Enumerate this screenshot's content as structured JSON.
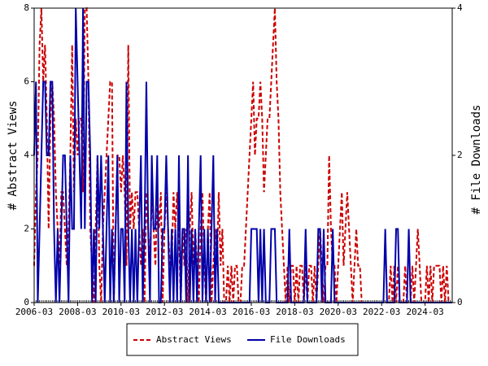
{
  "chart_data": {
    "type": "line",
    "ylabel": "# Abstract Views",
    "y2label": "# File Downloads",
    "x": [
      "2006-03",
      "2006-04",
      "2006-05",
      "2006-06",
      "2006-07",
      "2006-08",
      "2006-09",
      "2006-10",
      "2006-11",
      "2006-12",
      "2007-01",
      "2007-02",
      "2007-03",
      "2007-04",
      "2007-05",
      "2007-06",
      "2007-07",
      "2007-08",
      "2007-09",
      "2007-10",
      "2007-11",
      "2007-12",
      "2008-01",
      "2008-02",
      "2008-03",
      "2008-04",
      "2008-05",
      "2008-06",
      "2008-07",
      "2008-08",
      "2008-09",
      "2008-10",
      "2008-11",
      "2008-12",
      "2009-01",
      "2009-02",
      "2009-03",
      "2009-04",
      "2009-05",
      "2009-06",
      "2009-07",
      "2009-08",
      "2009-09",
      "2009-10",
      "2009-11",
      "2009-12",
      "2010-01",
      "2010-02",
      "2010-03",
      "2010-04",
      "2010-05",
      "2010-06",
      "2010-07",
      "2010-08",
      "2010-09",
      "2010-10",
      "2010-11",
      "2010-12",
      "2011-01",
      "2011-02",
      "2011-03",
      "2011-04",
      "2011-05",
      "2011-06",
      "2011-07",
      "2011-08",
      "2011-09",
      "2011-10",
      "2011-11",
      "2011-12",
      "2012-01",
      "2012-02",
      "2012-03",
      "2012-04",
      "2012-05",
      "2012-06",
      "2012-07",
      "2012-08",
      "2012-09",
      "2012-10",
      "2012-11",
      "2012-12",
      "2013-01",
      "2013-02",
      "2013-03",
      "2013-04",
      "2013-05",
      "2013-06",
      "2013-07",
      "2013-08",
      "2013-09",
      "2013-10",
      "2013-11",
      "2013-12",
      "2014-01",
      "2014-02",
      "2014-03",
      "2014-04",
      "2014-05",
      "2014-06",
      "2014-07",
      "2014-08",
      "2014-09",
      "2014-10",
      "2014-11",
      "2014-12",
      "2015-01",
      "2015-02",
      "2015-03",
      "2015-04",
      "2015-05",
      "2015-06",
      "2015-07",
      "2015-08",
      "2015-09",
      "2015-10",
      "2015-11",
      "2015-12",
      "2016-01",
      "2016-02",
      "2016-03",
      "2016-04",
      "2016-05",
      "2016-06",
      "2016-07",
      "2016-08",
      "2016-09",
      "2016-10",
      "2016-11",
      "2016-12",
      "2017-01",
      "2017-02",
      "2017-03",
      "2017-04",
      "2017-05",
      "2017-06",
      "2017-07",
      "2017-08",
      "2017-09",
      "2017-10",
      "2017-11",
      "2017-12",
      "2018-01",
      "2018-02",
      "2018-03",
      "2018-04",
      "2018-05",
      "2018-06",
      "2018-07",
      "2018-08",
      "2018-09",
      "2018-10",
      "2018-11",
      "2018-12",
      "2019-01",
      "2019-02",
      "2019-03",
      "2019-04",
      "2019-05",
      "2019-06",
      "2019-07",
      "2019-08",
      "2019-09",
      "2019-10",
      "2019-11",
      "2019-12",
      "2020-01",
      "2020-02",
      "2020-03",
      "2020-04",
      "2020-05",
      "2020-06",
      "2020-07",
      "2020-08",
      "2020-09",
      "2020-10",
      "2020-11",
      "2020-12",
      "2021-01",
      "2021-02",
      "2021-03",
      "2021-04",
      "2021-05",
      "2021-06",
      "2021-07",
      "2021-08",
      "2021-09",
      "2021-10",
      "2021-11",
      "2021-12",
      "2022-01",
      "2022-02",
      "2022-03",
      "2022-04",
      "2022-05",
      "2022-06",
      "2022-07",
      "2022-08",
      "2022-09",
      "2022-10",
      "2022-11",
      "2022-12",
      "2023-01",
      "2023-02",
      "2023-03",
      "2023-04",
      "2023-05",
      "2023-06",
      "2023-07",
      "2023-08",
      "2023-09",
      "2023-10",
      "2023-11",
      "2023-12",
      "2024-01",
      "2024-02",
      "2024-03",
      "2024-04",
      "2024-05",
      "2024-06",
      "2024-07",
      "2024-08",
      "2024-09",
      "2024-10",
      "2024-11",
      "2024-12",
      "2025-01",
      "2025-02",
      "2025-03",
      "2025-04",
      "2025-05",
      "2025-06"
    ],
    "xticks": [
      "2006-03",
      "2008-03",
      "2010-03",
      "2012-03",
      "2014-03",
      "2016-03",
      "2018-03",
      "2020-03",
      "2022-03",
      "2024-03"
    ],
    "ylim": [
      0,
      8
    ],
    "yticks": [
      0,
      2,
      4,
      6,
      8
    ],
    "y2lim": [
      0,
      4
    ],
    "y2ticks": [
      0,
      2,
      4
    ],
    "series": [
      {
        "name": "Abstract Views",
        "color": "#cc0000",
        "dash": "dashed",
        "axis": "y",
        "values": [
          1,
          3,
          4,
          7,
          8,
          6,
          7,
          5,
          2,
          5,
          6,
          5,
          3,
          2,
          1,
          3,
          3,
          2,
          1,
          2,
          4,
          7,
          3,
          5,
          4,
          5,
          5,
          3,
          8,
          8,
          6,
          2,
          1,
          0,
          2,
          4,
          1,
          0,
          2,
          3,
          4,
          5,
          6,
          6,
          0,
          2,
          4,
          4,
          3,
          4,
          3,
          1,
          7,
          2,
          3,
          2,
          3,
          3,
          2,
          1,
          2,
          0,
          3,
          2,
          1,
          3,
          2,
          1,
          3,
          2,
          3,
          0,
          2,
          3,
          2,
          1,
          1,
          3,
          2,
          3,
          2,
          0,
          2,
          1,
          2,
          0,
          2,
          3,
          1,
          2,
          1,
          0,
          2,
          3,
          1,
          0,
          2,
          3,
          0,
          1,
          2,
          1,
          3,
          1,
          2,
          0,
          0,
          1,
          0,
          1,
          0,
          1,
          1,
          0,
          0,
          1,
          1,
          2,
          3,
          4,
          5,
          6,
          4,
          5,
          5,
          6,
          5,
          3,
          4,
          5,
          5,
          6,
          7,
          8,
          6,
          5,
          3,
          2,
          1,
          0,
          1,
          0,
          1,
          1,
          0,
          1,
          0,
          1,
          1,
          0,
          1,
          0,
          1,
          1,
          0,
          1,
          0,
          1,
          2,
          1,
          0,
          1,
          1,
          4,
          2,
          1,
          1,
          0,
          1,
          2,
          3,
          1,
          2,
          3,
          2,
          1,
          0,
          1,
          2,
          1,
          1,
          0,
          0,
          0,
          0,
          0,
          0,
          0,
          0,
          0,
          0,
          0,
          0,
          0,
          0,
          0,
          0,
          1,
          0,
          1,
          0,
          1,
          0,
          0,
          0,
          1,
          0,
          0,
          0,
          1,
          0,
          1,
          2,
          1,
          0,
          0,
          0,
          1,
          0,
          1,
          0,
          1,
          1,
          1,
          1,
          0,
          1,
          0,
          1,
          0,
          0,
          0
        ]
      },
      {
        "name": "File Downloads",
        "color": "#0000aa",
        "dash": "solid",
        "axis": "y2",
        "values": [
          2,
          3,
          0,
          1,
          2,
          3,
          3,
          2,
          2,
          3,
          3,
          1,
          0,
          1,
          0,
          1,
          2,
          2,
          1,
          0,
          2,
          1,
          1,
          4,
          3,
          2,
          1,
          4,
          1,
          3,
          3,
          2,
          0,
          1,
          0,
          2,
          1,
          2,
          1,
          0,
          1,
          2,
          0,
          1,
          0,
          1,
          2,
          0,
          1,
          1,
          0,
          3,
          1,
          0,
          1,
          0,
          1,
          0,
          1,
          2,
          0,
          1,
          3,
          1,
          0,
          2,
          1,
          1,
          2,
          0,
          0,
          1,
          1,
          2,
          1,
          0,
          1,
          0,
          1,
          0,
          2,
          0,
          1,
          1,
          0,
          2,
          0,
          1,
          0,
          1,
          0,
          1,
          2,
          0,
          1,
          0,
          1,
          0,
          1,
          2,
          0,
          1,
          0,
          0,
          0,
          0,
          0,
          0,
          0,
          0,
          0,
          0,
          0,
          0,
          0,
          0,
          0,
          0,
          0,
          0,
          1,
          1,
          1,
          1,
          0,
          1,
          0,
          1,
          0,
          0,
          0,
          1,
          1,
          1,
          0,
          0,
          0,
          0,
          0,
          0,
          0,
          1,
          0,
          0,
          0,
          0,
          0,
          0,
          0,
          0,
          1,
          0,
          0,
          0,
          0,
          0,
          0,
          1,
          1,
          0,
          1,
          0,
          0,
          0,
          0,
          1,
          0,
          0,
          0,
          0,
          0,
          0,
          0,
          0,
          0,
          0,
          0,
          0,
          0,
          0,
          0,
          0,
          0,
          0,
          0,
          0,
          0,
          0,
          0,
          0,
          0,
          0,
          0,
          0,
          1,
          0,
          0,
          0,
          0,
          0,
          1,
          1,
          0,
          0,
          0,
          0,
          0,
          1,
          0,
          0,
          0,
          0,
          0,
          0,
          0,
          0,
          0,
          0,
          0,
          0,
          0,
          0,
          0,
          0,
          0,
          0,
          0,
          0,
          0,
          0,
          0,
          0
        ]
      }
    ]
  }
}
